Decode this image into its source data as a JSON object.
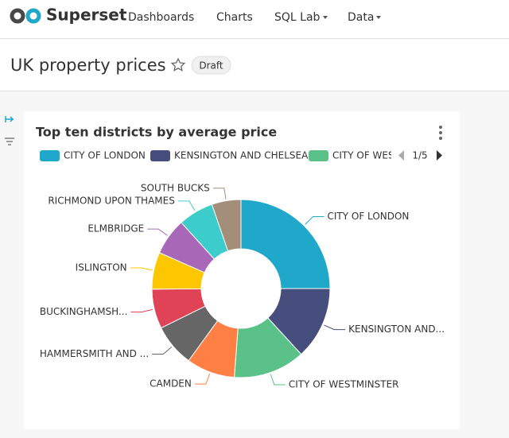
{
  "nav": {
    "brand": "Superset",
    "items": [
      "Dashboards",
      "Charts",
      "SQL Lab",
      "Data"
    ]
  },
  "header": {
    "title": "UK property prices",
    "status": "Draft"
  },
  "chart_data": {
    "type": "pie",
    "title": "Top ten districts by average price",
    "categories": [
      "CITY OF LONDON",
      "KENSINGTON AND...",
      "CITY OF WESTMINSTER",
      "CAMDEN",
      "HAMMERSMITH AND ...",
      "BUCKINGHAMSH...",
      "ISLINGTON",
      "ELMBRIDGE",
      "RICHMOND UPON THAMES",
      "SOUTH BUCKS"
    ],
    "values": [
      25,
      13.2,
      13,
      8.8,
      7.7,
      7.2,
      6.7,
      6.7,
      6.4,
      5.3
    ],
    "colors": [
      "#1fa8c9",
      "#454e7c",
      "#5ac189",
      "#ff7f44",
      "#666666",
      "#e04355",
      "#fcc700",
      "#a868b7",
      "#3ccccb",
      "#a38f79"
    ],
    "donut": true,
    "legend": [
      "CITY OF LONDON",
      "KENSINGTON AND CHELSEA",
      "CITY OF WES"
    ],
    "legend_page": "1/5"
  }
}
